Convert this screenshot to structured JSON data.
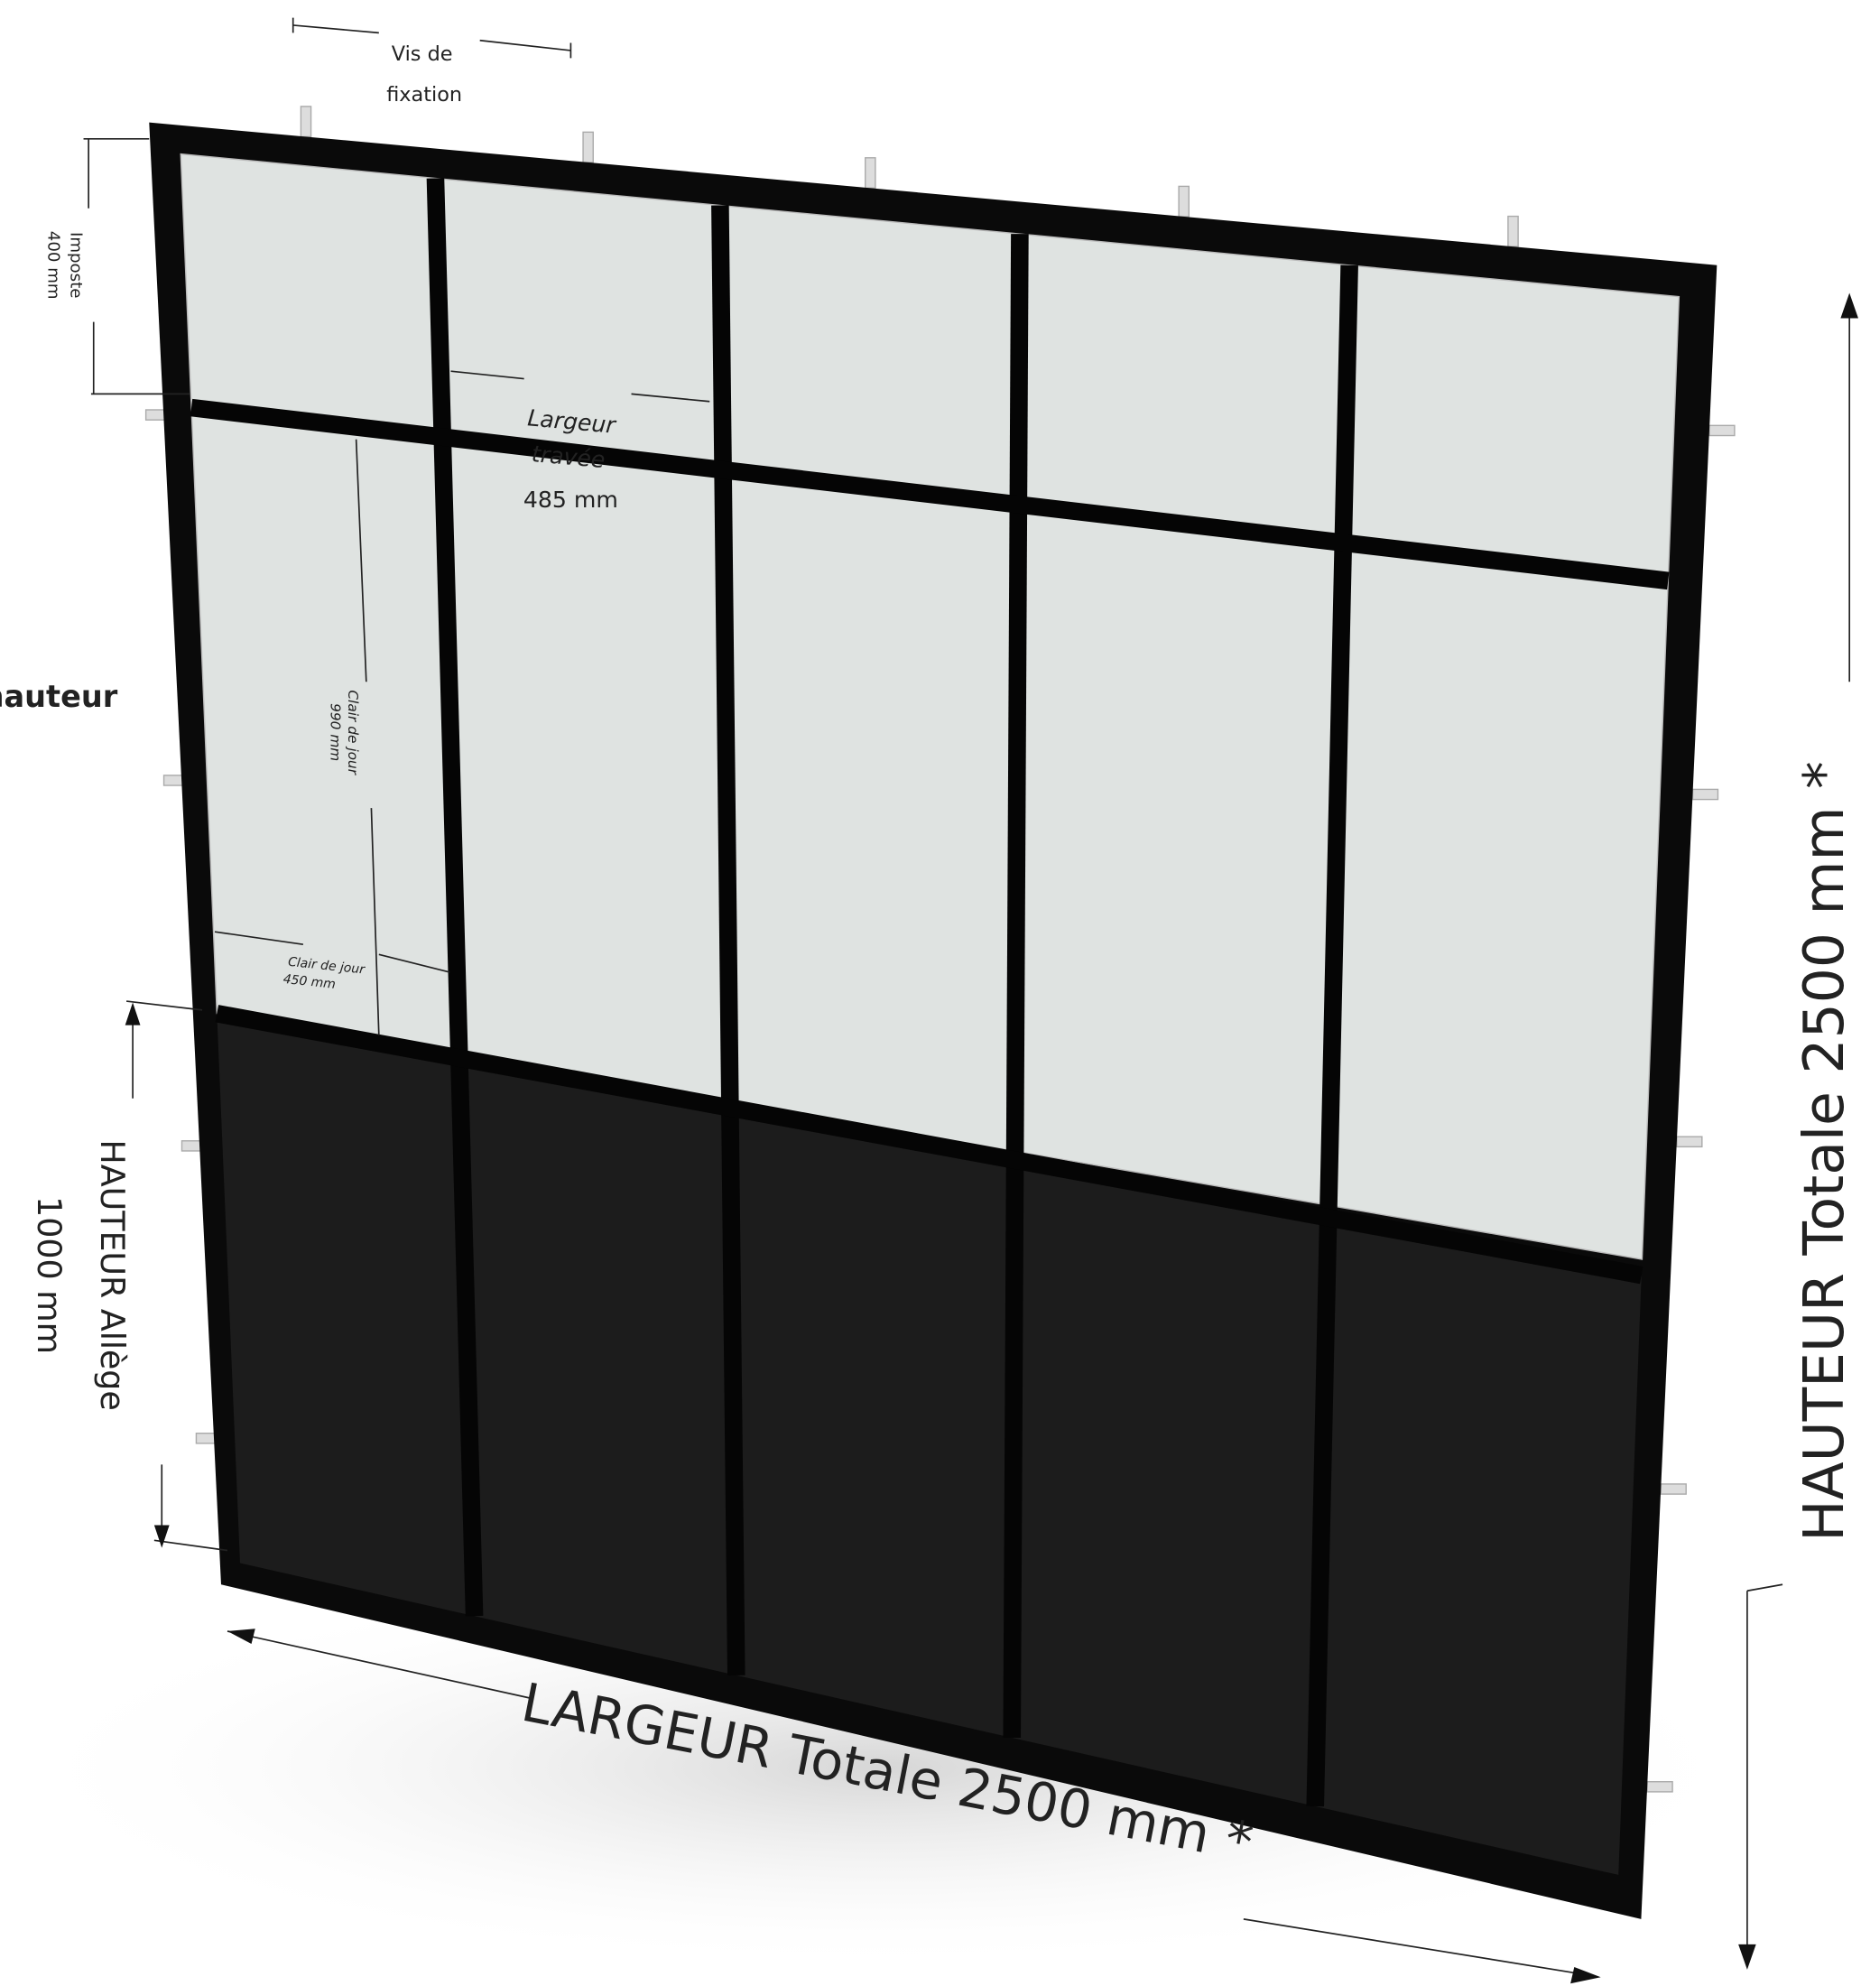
{
  "labels": {
    "vis_de_fixation": [
      "Vis de",
      "fixation"
    ],
    "imposte": [
      "Imposte",
      "400 mm"
    ],
    "largeur_travee": [
      "Largeur",
      "travée",
      "485 mm"
    ],
    "hauteur_side": "hauteur",
    "clair_de_jour_hauteur": [
      "Clair de jour",
      "990 mm"
    ],
    "clair_de_jour_largeur": [
      "Clair de jour",
      "450 mm"
    ],
    "hauteur_allege": [
      "HAUTEUR Allège",
      "1000 mm"
    ],
    "hauteur_totale": "HAUTEUR Totale 2500 mm *",
    "largeur_totale": "LARGEUR Totale 2500 mm *"
  }
}
